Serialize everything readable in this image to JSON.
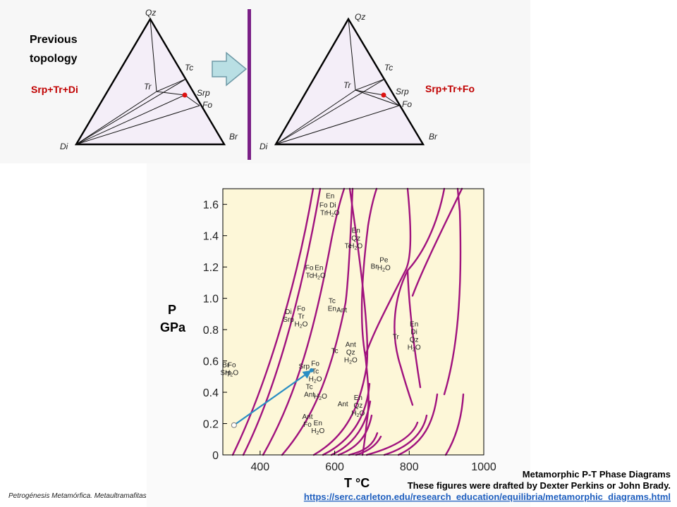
{
  "left_panel": {
    "title_line1": "Previous",
    "title_line2": "topology",
    "assemblage": "Srp+Tr+Di",
    "vertices": {
      "top": "Qz",
      "left": "Di",
      "right": "Br"
    },
    "phases": {
      "tc": "Tc",
      "tr": "Tr",
      "srp": "Srp",
      "fo": "Fo"
    }
  },
  "right_panel": {
    "assemblage": "Srp+Tr+Fo",
    "vertices": {
      "top": "Qz",
      "left": "Di",
      "right": "Br"
    },
    "phases": {
      "tc": "Tc",
      "tr": "Tr",
      "srp": "Srp",
      "fo": "Fo"
    }
  },
  "colors": {
    "triangle_fill": "#f4eef8",
    "divider": "#7a1f86",
    "arrow_fill": "#b9dfe4",
    "arrow_stroke": "#6f9aa7",
    "plot_bg": "#fdf7d8",
    "curve": "#a0127e",
    "highlight_arrow": "#2a8ec4",
    "marker": "#dd1111"
  },
  "chart_data": {
    "type": "line",
    "xlabel": "T °C",
    "ylabel": [
      "P",
      "GPa"
    ],
    "xlim": [
      300,
      1000
    ],
    "ylim": [
      0,
      1.7
    ],
    "x_ticks": [
      "400",
      "600",
      "800",
      "1000"
    ],
    "y_ticks": [
      "0",
      "0.2",
      "0.4",
      "0.6",
      "0.8",
      "1.0",
      "1.2",
      "1.4",
      "1.6"
    ],
    "highlight_arrow": {
      "from": [
        330,
        0.19
      ],
      "to": [
        538,
        0.54
      ]
    },
    "field_labels": [
      {
        "lines": [
          "Br",
          "Srp"
        ],
        "x": 308,
        "y": 0.56
      },
      {
        "lines": [
          "Fo",
          "H2O"
        ],
        "x": 324,
        "y": 0.56
      },
      {
        "lines": [
          "Srp"
        ],
        "x": 518,
        "y": 0.55
      },
      {
        "lines": [
          "Fo",
          "Tc",
          "H2O"
        ],
        "x": 548,
        "y": 0.57
      },
      {
        "lines": [
          "Di",
          "Srp"
        ],
        "x": 476,
        "y": 0.9
      },
      {
        "lines": [
          "Fo",
          "Tr",
          "H2O"
        ],
        "x": 510,
        "y": 0.92
      },
      {
        "lines": [
          "Fo",
          "Tc"
        ],
        "x": 532,
        "y": 1.18
      },
      {
        "lines": [
          "En",
          "H2O"
        ],
        "x": 558,
        "y": 1.18
      },
      {
        "lines": [
          "En"
        ],
        "x": 588,
        "y": 1.64
      },
      {
        "lines": [
          "Fo",
          "Tr"
        ],
        "x": 570,
        "y": 1.58
      },
      {
        "lines": [
          "Di",
          "H2O"
        ],
        "x": 595,
        "y": 1.58
      },
      {
        "lines": [
          "Tc"
        ],
        "x": 636,
        "y": 1.32
      },
      {
        "lines": [
          "En",
          "Qz",
          "H2O"
        ],
        "x": 657,
        "y": 1.42
      },
      {
        "lines": [
          "Br"
        ],
        "x": 706,
        "y": 1.19
      },
      {
        "lines": [
          "Pe",
          "H2O"
        ],
        "x": 732,
        "y": 1.23
      },
      {
        "lines": [
          "Tc",
          "En"
        ],
        "x": 593,
        "y": 0.97
      },
      {
        "lines": [
          "Ant"
        ],
        "x": 619,
        "y": 0.91
      },
      {
        "lines": [
          "Tc"
        ],
        "x": 600,
        "y": 0.65
      },
      {
        "lines": [
          "Ant",
          "Qz",
          "H2O"
        ],
        "x": 643,
        "y": 0.69
      },
      {
        "lines": [
          "Tc",
          "Ant"
        ],
        "x": 532,
        "y": 0.42
      },
      {
        "lines": [
          "H2O"
        ],
        "x": 562,
        "y": 0.36
      },
      {
        "lines": [
          "Ant",
          "Fo"
        ],
        "x": 527,
        "y": 0.23
      },
      {
        "lines": [
          "En",
          "H2O"
        ],
        "x": 555,
        "y": 0.19
      },
      {
        "lines": [
          "Ant"
        ],
        "x": 622,
        "y": 0.31
      },
      {
        "lines": [
          "En",
          "Qz",
          "H2O"
        ],
        "x": 663,
        "y": 0.35
      },
      {
        "lines": [
          "Tr"
        ],
        "x": 764,
        "y": 0.74
      },
      {
        "lines": [
          "En",
          "Di",
          "Qz",
          "H2O"
        ],
        "x": 813,
        "y": 0.82
      }
    ]
  },
  "caption": {
    "title": "Metamorphic P-T Phase Diagrams",
    "credit": "These figures were drafted by Dexter Perkins or John Brady.",
    "url": "https://serc.carleton.edu/research_education/equilibria/metamorphic_diagrams.html"
  },
  "footer": "Petrogénesis Metamórfica. Metaultramafitas"
}
